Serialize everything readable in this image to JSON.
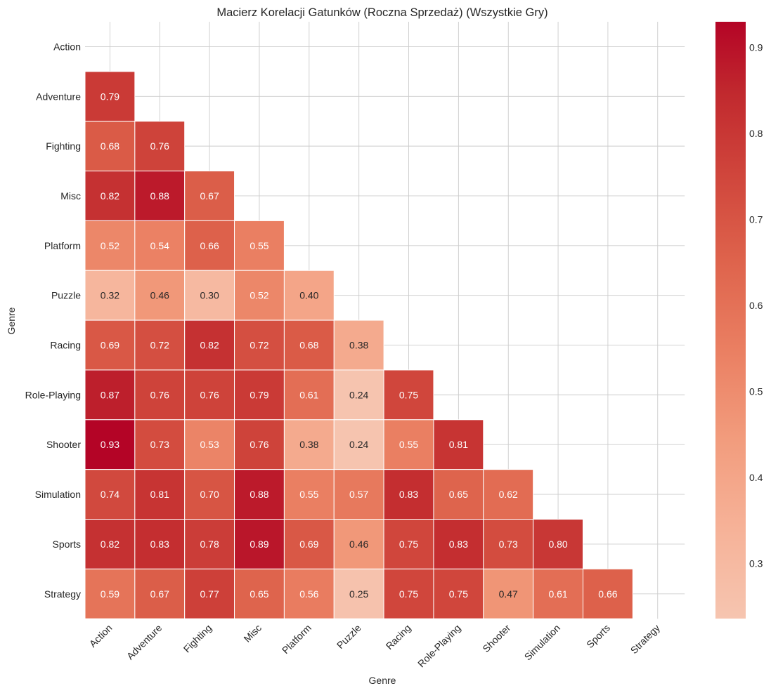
{
  "chart_data": {
    "type": "heatmap",
    "title": "Macierz Korelacji Gatunków (Roczna Sprzedaż) (Wszystkie Gry)",
    "xlabel": "Genre",
    "ylabel": "Genre",
    "categories": [
      "Action",
      "Adventure",
      "Fighting",
      "Misc",
      "Platform",
      "Puzzle",
      "Racing",
      "Role-Playing",
      "Shooter",
      "Simulation",
      "Sports",
      "Strategy"
    ],
    "mask": "upper-triangle-including-diagonal",
    "matrix": [
      [
        null,
        null,
        null,
        null,
        null,
        null,
        null,
        null,
        null,
        null,
        null,
        null
      ],
      [
        0.79,
        null,
        null,
        null,
        null,
        null,
        null,
        null,
        null,
        null,
        null,
        null
      ],
      [
        0.68,
        0.76,
        null,
        null,
        null,
        null,
        null,
        null,
        null,
        null,
        null,
        null
      ],
      [
        0.82,
        0.88,
        0.67,
        null,
        null,
        null,
        null,
        null,
        null,
        null,
        null,
        null
      ],
      [
        0.52,
        0.54,
        0.66,
        0.55,
        null,
        null,
        null,
        null,
        null,
        null,
        null,
        null
      ],
      [
        0.32,
        0.46,
        0.3,
        0.52,
        0.4,
        null,
        null,
        null,
        null,
        null,
        null,
        null
      ],
      [
        0.69,
        0.72,
        0.82,
        0.72,
        0.68,
        0.38,
        null,
        null,
        null,
        null,
        null,
        null
      ],
      [
        0.87,
        0.76,
        0.76,
        0.79,
        0.61,
        0.24,
        0.75,
        null,
        null,
        null,
        null,
        null
      ],
      [
        0.93,
        0.73,
        0.53,
        0.76,
        0.38,
        0.24,
        0.55,
        0.81,
        null,
        null,
        null,
        null
      ],
      [
        0.74,
        0.81,
        0.7,
        0.88,
        0.55,
        0.57,
        0.83,
        0.65,
        0.62,
        null,
        null,
        null
      ],
      [
        0.82,
        0.83,
        0.78,
        0.89,
        0.69,
        0.46,
        0.75,
        0.83,
        0.73,
        0.8,
        null,
        null
      ],
      [
        0.59,
        0.67,
        0.77,
        0.65,
        0.56,
        0.25,
        0.75,
        0.75,
        0.47,
        0.61,
        0.66,
        null
      ]
    ],
    "value_format": "0.00",
    "colormap": "coolwarm (upper half)",
    "color_range": [
      0.236,
      0.93
    ],
    "colorbar_ticks": [
      "0.3",
      "0.4",
      "0.5",
      "0.6",
      "0.7",
      "0.8",
      "0.9"
    ],
    "grid": true,
    "colors": {
      "low": "#f6c5b0",
      "high": "#b40426",
      "grid": "#cccccc",
      "text_dark": "#262626",
      "text_light": "#ffffff"
    }
  }
}
